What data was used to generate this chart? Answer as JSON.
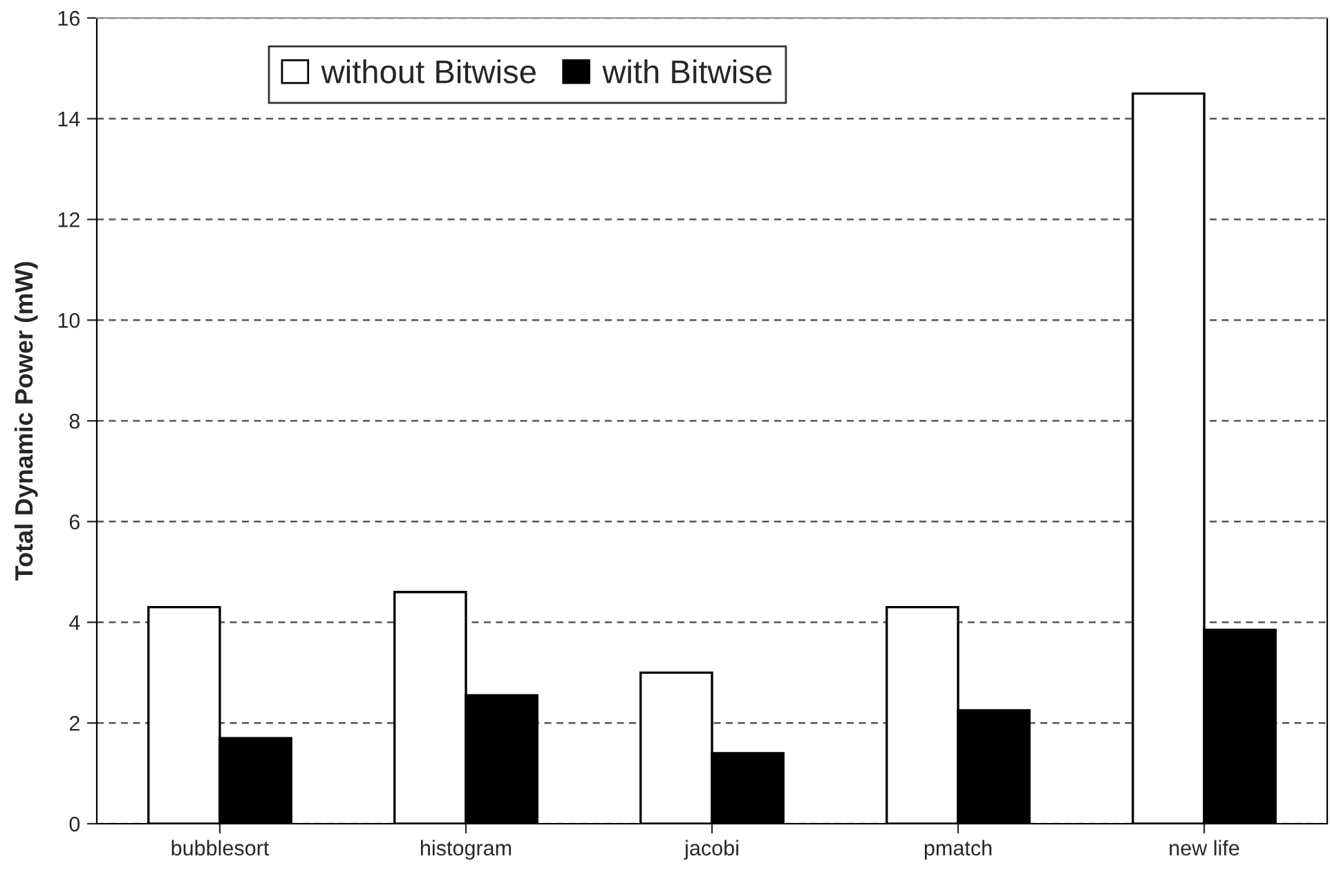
{
  "chart_data": {
    "type": "bar",
    "ylabel": "Total Dynamic Power (mW)",
    "categories": [
      "bubblesort",
      "histogram",
      "jacobi",
      "pmatch",
      "new life"
    ],
    "series": [
      {
        "name": "without Bitwise",
        "color": "#ffffff",
        "values": [
          4.3,
          4.6,
          3.0,
          4.3,
          14.5
        ]
      },
      {
        "name": "with Bitwise",
        "color": "#000000",
        "values": [
          1.7,
          2.55,
          1.4,
          2.25,
          3.85
        ]
      }
    ],
    "ylim": [
      0,
      16
    ],
    "yticks": [
      0,
      2,
      4,
      6,
      8,
      10,
      12,
      14,
      16
    ],
    "grid": "y",
    "legend": "top"
  }
}
